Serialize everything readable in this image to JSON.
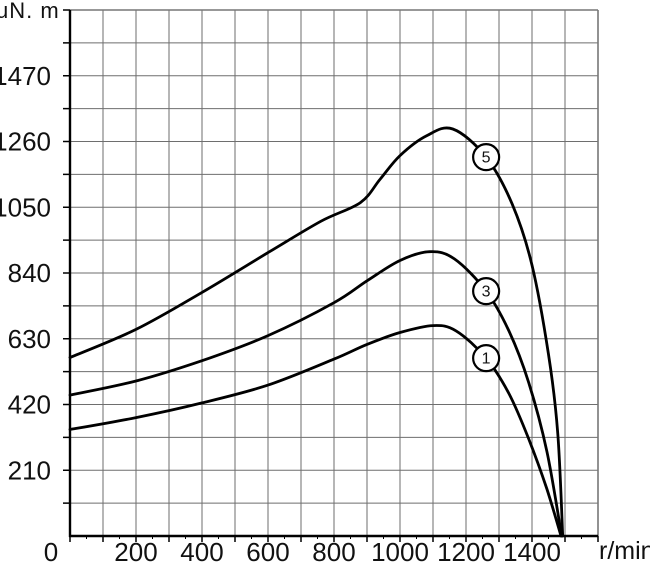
{
  "chart_data": {
    "type": "line",
    "title": "",
    "y_unit": "uN. m",
    "x_unit": "r/min",
    "grid": true,
    "legend_position": "none",
    "x_axis": {
      "min": 0,
      "max": 1600,
      "grid_step": 100,
      "label_step": 200,
      "tick_labels": [
        "0",
        "200",
        "400",
        "600",
        "800",
        "1000",
        "1200",
        "1400"
      ]
    },
    "y_axis": {
      "min": 0,
      "max": 1680,
      "grid_step": 105,
      "label_step": 210,
      "tick_labels": [
        "210",
        "420",
        "630",
        "840",
        "1050",
        "1260",
        "1470"
      ]
    },
    "series": [
      {
        "name": "curve-1",
        "label": "1",
        "label_at": {
          "x": 1261,
          "y": 568
        },
        "points": [
          [
            0,
            340
          ],
          [
            200,
            378
          ],
          [
            400,
            425
          ],
          [
            600,
            482
          ],
          [
            800,
            565
          ],
          [
            900,
            612
          ],
          [
            1000,
            650
          ],
          [
            1100,
            672
          ],
          [
            1170,
            655
          ],
          [
            1261,
            568
          ],
          [
            1330,
            455
          ],
          [
            1390,
            310
          ],
          [
            1445,
            150
          ],
          [
            1488,
            0
          ]
        ]
      },
      {
        "name": "curve-3",
        "label": "3",
        "label_at": {
          "x": 1261,
          "y": 782
        },
        "points": [
          [
            0,
            450
          ],
          [
            200,
            495
          ],
          [
            400,
            560
          ],
          [
            600,
            640
          ],
          [
            800,
            745
          ],
          [
            900,
            815
          ],
          [
            1000,
            880
          ],
          [
            1090,
            908
          ],
          [
            1165,
            885
          ],
          [
            1261,
            782
          ],
          [
            1330,
            655
          ],
          [
            1390,
            490
          ],
          [
            1445,
            270
          ],
          [
            1490,
            0
          ]
        ]
      },
      {
        "name": "curve-5",
        "label": "5",
        "label_at": {
          "x": 1261,
          "y": 1210
        },
        "points": [
          [
            0,
            570
          ],
          [
            200,
            660
          ],
          [
            400,
            778
          ],
          [
            600,
            905
          ],
          [
            760,
            1005
          ],
          [
            880,
            1065
          ],
          [
            940,
            1140
          ],
          [
            1000,
            1215
          ],
          [
            1080,
            1278
          ],
          [
            1160,
            1300
          ],
          [
            1261,
            1210
          ],
          [
            1340,
            1060
          ],
          [
            1400,
            865
          ],
          [
            1450,
            580
          ],
          [
            1478,
            330
          ],
          [
            1493,
            0
          ]
        ]
      }
    ],
    "colors": {
      "curve": "#000000",
      "grid": "#6e6e6e",
      "axis": "#000000",
      "frame": "#777777",
      "text": "#111111",
      "plot_background": "#ffffff"
    }
  }
}
